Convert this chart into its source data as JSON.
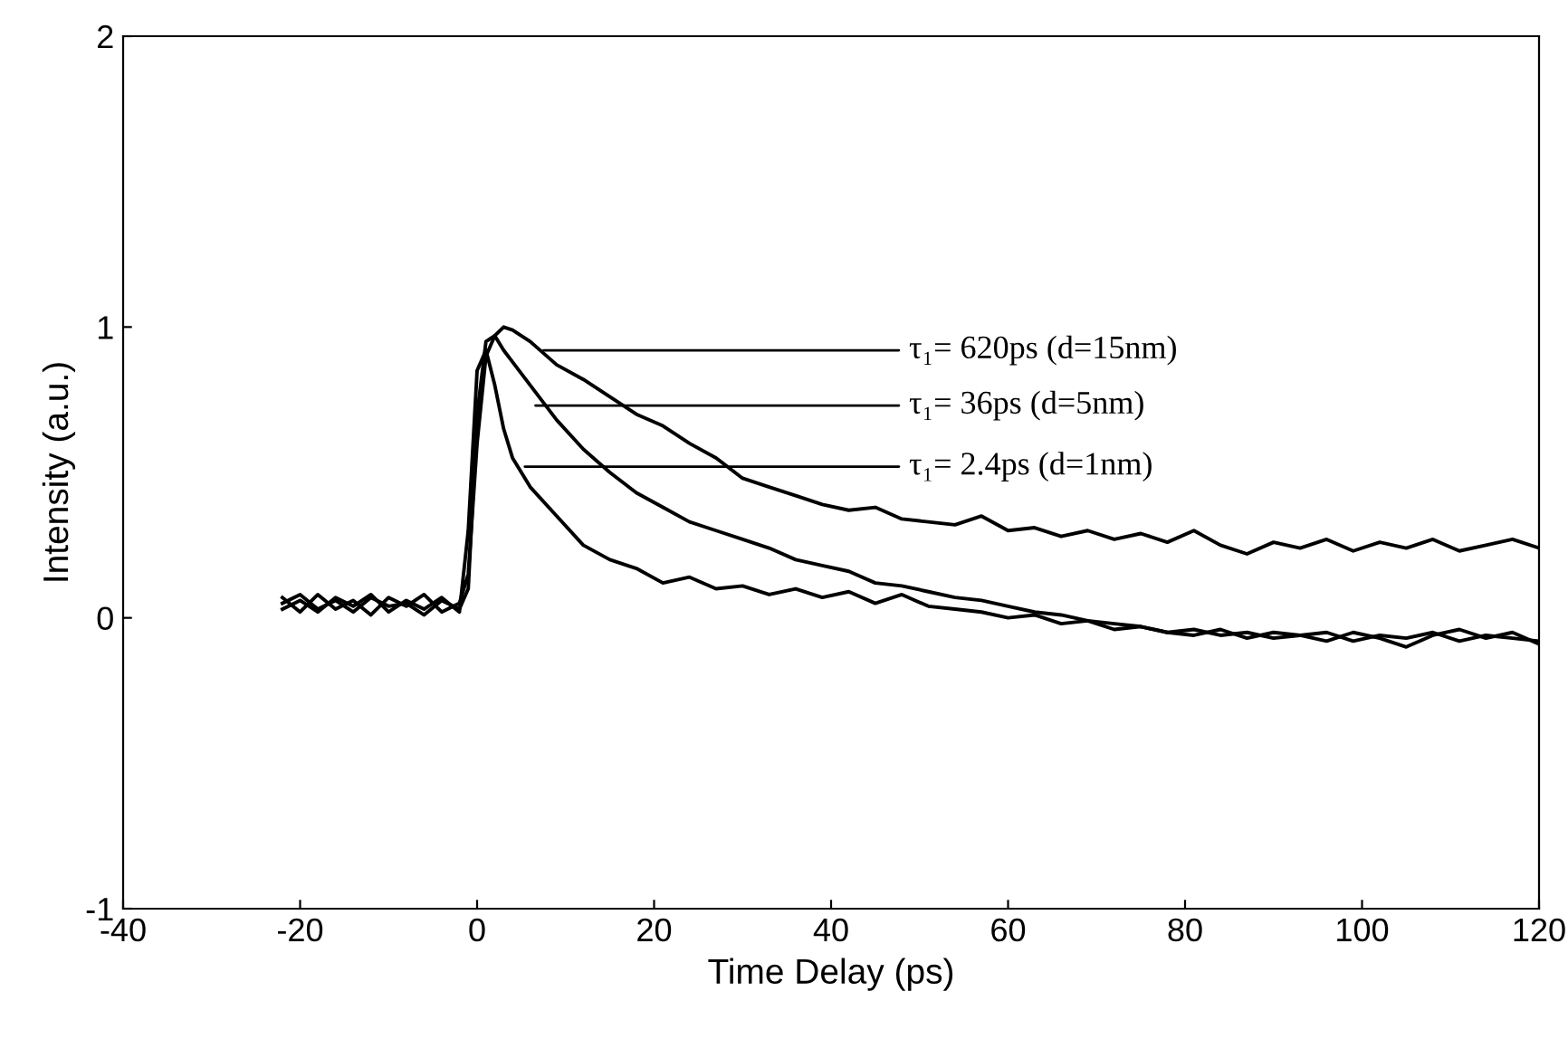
{
  "chart_data": {
    "type": "line",
    "xlabel": "Time Delay (ps)",
    "ylabel": "Intensity (a.u.)",
    "x": [
      -22,
      -20,
      -18,
      -16,
      -14,
      -12,
      -10,
      -8,
      -6,
      -4,
      -2,
      -1,
      0,
      1,
      2,
      3,
      4,
      6,
      9,
      12,
      15,
      18,
      21,
      24,
      27,
      30,
      33,
      36,
      39,
      42,
      45,
      48,
      51,
      54,
      57,
      60,
      63,
      66,
      69,
      72,
      75,
      78,
      81,
      84,
      87,
      90,
      93,
      96,
      99,
      102,
      105,
      108,
      111,
      114,
      117,
      120
    ],
    "series": [
      {
        "color": "#000000",
        "values": [
          0.07,
          0.02,
          0.08,
          0.03,
          0.06,
          0.01,
          0.07,
          0.04,
          0.08,
          0.02,
          0.05,
          0.15,
          0.6,
          0.9,
          0.97,
          1.0,
          0.99,
          0.95,
          0.87,
          0.82,
          0.76,
          0.7,
          0.66,
          0.6,
          0.55,
          0.48,
          0.45,
          0.42,
          0.39,
          0.37,
          0.38,
          0.34,
          0.33,
          0.32,
          0.35,
          0.3,
          0.31,
          0.28,
          0.3,
          0.27,
          0.29,
          0.26,
          0.3,
          0.25,
          0.22,
          0.26,
          0.24,
          0.27,
          0.23,
          0.26,
          0.24,
          0.27,
          0.23,
          0.25,
          0.27,
          0.24
        ]
      },
      {
        "color": "#000000",
        "values": [
          0.05,
          0.08,
          0.03,
          0.06,
          0.02,
          0.07,
          0.04,
          0.05,
          0.01,
          0.06,
          0.03,
          0.1,
          0.7,
          0.95,
          0.97,
          0.92,
          0.88,
          0.8,
          0.68,
          0.58,
          0.5,
          0.43,
          0.38,
          0.33,
          0.3,
          0.27,
          0.24,
          0.2,
          0.18,
          0.16,
          0.12,
          0.11,
          0.09,
          0.07,
          0.06,
          0.04,
          0.02,
          0.01,
          -0.01,
          -0.02,
          -0.03,
          -0.05,
          -0.04,
          -0.06,
          -0.05,
          -0.07,
          -0.06,
          -0.05,
          -0.08,
          -0.06,
          -0.07,
          -0.05,
          -0.08,
          -0.06,
          -0.07,
          -0.08
        ]
      },
      {
        "color": "#000000",
        "values": [
          0.03,
          0.06,
          0.02,
          0.07,
          0.04,
          0.08,
          0.02,
          0.06,
          0.03,
          0.07,
          0.02,
          0.3,
          0.85,
          0.92,
          0.8,
          0.65,
          0.55,
          0.45,
          0.35,
          0.25,
          0.2,
          0.17,
          0.12,
          0.14,
          0.1,
          0.11,
          0.08,
          0.1,
          0.07,
          0.09,
          0.05,
          0.08,
          0.04,
          0.03,
          0.02,
          0.0,
          0.01,
          -0.02,
          -0.01,
          -0.04,
          -0.03,
          -0.05,
          -0.06,
          -0.04,
          -0.07,
          -0.05,
          -0.06,
          -0.08,
          -0.05,
          -0.07,
          -0.1,
          -0.06,
          -0.04,
          -0.07,
          -0.05,
          -0.09
        ]
      }
    ],
    "annotations": [
      {
        "text": "τ₁= 620ps (d=15nm)",
        "x": 7.5,
        "y": 0.92
      },
      {
        "text": "τ₁= 36ps (d=5nm)",
        "x": 6.6,
        "y": 0.73
      },
      {
        "text": "τ₁= 2.4ps (d=1nm)",
        "x": 5.4,
        "y": 0.52
      }
    ],
    "xlim": [
      -40,
      120
    ],
    "xticks": [
      -40,
      -20,
      0,
      20,
      40,
      60,
      80,
      100,
      120
    ],
    "ylim": [
      -1,
      2
    ],
    "yticks": [
      -1,
      0,
      1,
      2
    ],
    "grid": false,
    "legend": false
  }
}
